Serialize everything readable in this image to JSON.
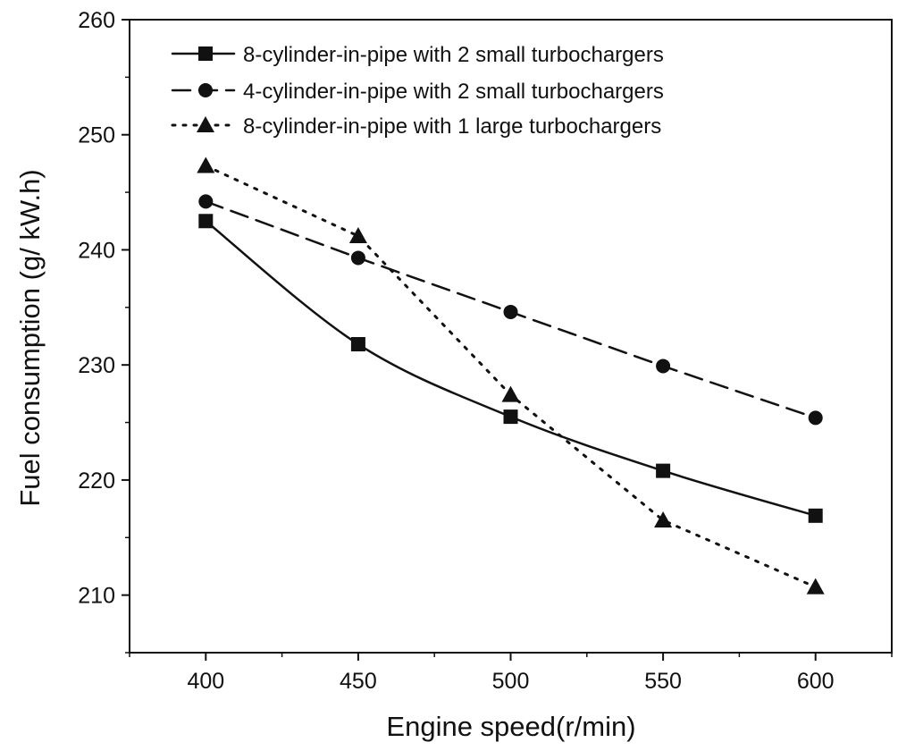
{
  "chart_data": {
    "type": "line",
    "title": "",
    "xlabel": "Engine speed(r/min)",
    "ylabel": "Fuel consumption (g/ kW.h)",
    "xlim": [
      375,
      625
    ],
    "ylim": [
      205,
      260
    ],
    "x_ticks": [
      400,
      450,
      500,
      550,
      600
    ],
    "y_ticks": [
      210,
      220,
      230,
      240,
      250,
      260
    ],
    "x_tick_labels": [
      "400",
      "450",
      "500",
      "550",
      "600"
    ],
    "y_tick_labels": [
      "210",
      "220",
      "230",
      "240",
      "250",
      "260"
    ],
    "grid": false,
    "legend_position": "top",
    "categories": [
      400,
      450,
      500,
      550,
      600
    ],
    "series": [
      {
        "name": "8-cylinder-in-pipe with 2 small turbochargers",
        "values": [
          242.5,
          231.8,
          225.5,
          220.8,
          216.9
        ],
        "marker": "square",
        "line_style": "solid",
        "smooth": true
      },
      {
        "name": "4-cylinder-in-pipe with 2 small turbochargers",
        "values": [
          244.2,
          239.3,
          234.6,
          229.9,
          225.4
        ],
        "marker": "circle",
        "line_style": "dashed",
        "smooth": false
      },
      {
        "name": "8-cylinder-in-pipe with 1 large turbochargers",
        "values": [
          247.3,
          241.2,
          227.4,
          216.5,
          210.7
        ],
        "marker": "triangle",
        "line_style": "dotted",
        "smooth": false
      }
    ]
  }
}
